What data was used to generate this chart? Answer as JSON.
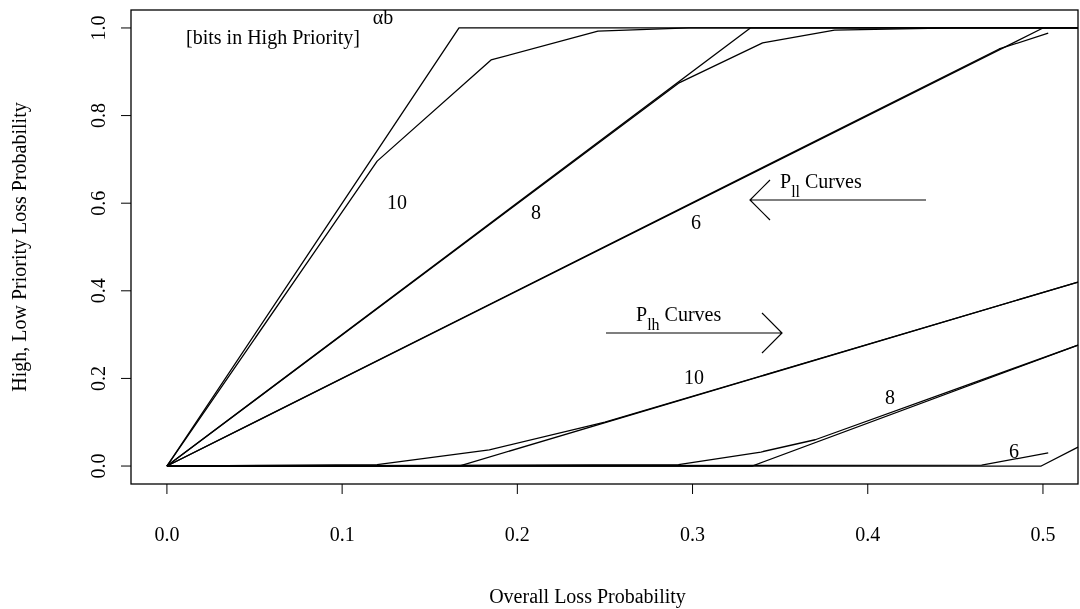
{
  "chart_data": {
    "type": "line",
    "xlabel": "Overall Loss Probability",
    "ylabel": "High, Low Priority Loss Probability",
    "xlim": [
      -0.0205,
      0.52
    ],
    "ylim": [
      -0.041,
      1.041
    ],
    "xticks": [
      {
        "value": 0,
        "label": "0.0"
      },
      {
        "value": 0.1,
        "label": "0.1"
      },
      {
        "value": 0.2,
        "label": "0.2"
      },
      {
        "value": 0.3,
        "label": "0.3"
      },
      {
        "value": 0.4,
        "label": "0.4"
      },
      {
        "value": 0.5,
        "label": "0.5"
      }
    ],
    "yticks": [
      {
        "value": 0,
        "label": "0.0"
      },
      {
        "value": 0.2,
        "label": "0.2"
      },
      {
        "value": 0.4,
        "label": "0.4"
      },
      {
        "value": 0.6,
        "label": "0.6"
      },
      {
        "value": 0.8,
        "label": "0.8"
      },
      {
        "value": 1,
        "label": "1.0"
      }
    ],
    "grid": false,
    "marker": "none",
    "line_style": "solid",
    "series": [
      {
        "color": "#000000",
        "x": [
          0,
          0.1667,
          0.52
        ],
        "values": [
          0,
          1,
          1
        ]
      },
      {
        "color": "#000000",
        "x": [
          0,
          0.12,
          0.185,
          0.246,
          0.298,
          0.52
        ],
        "values": [
          0,
          0.696,
          0.927,
          0.993,
          1,
          1
        ]
      },
      {
        "color": "#000000",
        "x": [
          0,
          0.333,
          0.52
        ],
        "values": [
          0,
          1,
          1
        ]
      },
      {
        "color": "#000000",
        "x": [
          0,
          0.292,
          0.34,
          0.381,
          0.45,
          0.52
        ],
        "values": [
          0,
          0.874,
          0.966,
          0.995,
          1,
          1
        ]
      },
      {
        "color": "#000000",
        "x": [
          0,
          0.5,
          0.52
        ],
        "values": [
          0,
          1,
          1
        ]
      },
      {
        "color": "#000000",
        "x": [
          0,
          0.475,
          0.503
        ],
        "values": [
          0,
          0.952,
          0.988
        ]
      },
      {
        "color": "#000000",
        "x": [
          0,
          0.1667,
          0.52
        ],
        "values": [
          0,
          0,
          0.42
        ]
      },
      {
        "color": "#000000",
        "x": [
          0,
          0.12,
          0.184,
          0.25,
          0.52
        ],
        "values": [
          0,
          0.003,
          0.037,
          0.1,
          0.42
        ]
      },
      {
        "color": "#000000",
        "x": [
          0,
          0.334,
          0.52
        ],
        "values": [
          0,
          0,
          0.276
        ]
      },
      {
        "color": "#000000",
        "x": [
          0,
          0.292,
          0.339,
          0.37,
          0.52
        ],
        "values": [
          0,
          0.003,
          0.032,
          0.06,
          0.276
        ]
      },
      {
        "color": "#000000",
        "x": [
          0,
          0.499,
          0.52
        ],
        "values": [
          0,
          0,
          0.043
        ]
      },
      {
        "color": "#000000",
        "x": [
          0,
          0.465,
          0.503
        ],
        "values": [
          0,
          0.002,
          0.03
        ]
      }
    ],
    "annotations": [
      "αb",
      "[bits in High Priority]",
      "10",
      "8",
      "6",
      "10",
      "8",
      "6",
      "P$_{ll}$ Curves",
      "P$_{lh}$ Curves"
    ]
  }
}
